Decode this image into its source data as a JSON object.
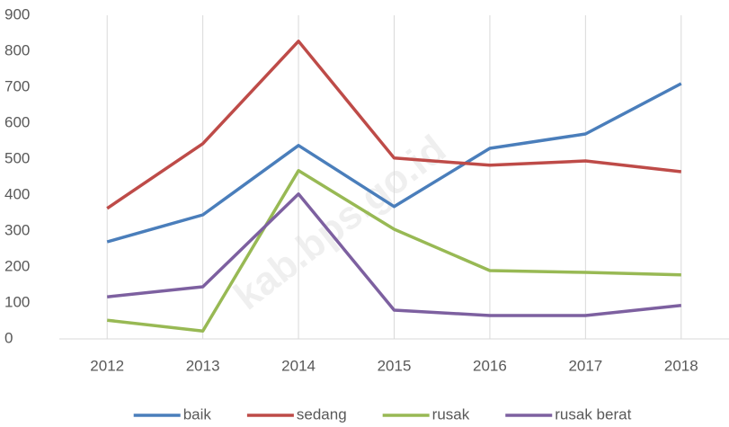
{
  "chart_data": {
    "type": "line",
    "categories": [
      "2012",
      "2013",
      "2014",
      "2015",
      "2016",
      "2017",
      "2018"
    ],
    "series": [
      {
        "name": "baik",
        "color": "#4a7ebb",
        "values": [
          270,
          345,
          538,
          368,
          530,
          570,
          710
        ]
      },
      {
        "name": "sedang",
        "color": "#be4b48",
        "values": [
          363,
          543,
          828,
          503,
          483,
          495,
          465
        ]
      },
      {
        "name": "rusak",
        "color": "#98b954",
        "values": [
          52,
          22,
          468,
          305,
          190,
          185,
          178
        ]
      },
      {
        "name": "rusak berat",
        "color": "#7d60a0",
        "values": [
          117,
          145,
          403,
          80,
          65,
          65,
          93
        ]
      }
    ],
    "ylim": [
      0,
      900
    ],
    "yticks": [
      0,
      100,
      200,
      300,
      400,
      500,
      600,
      700,
      800,
      900
    ],
    "grid": true,
    "legend": "bottom",
    "watermark": "kab.bps.go.id"
  }
}
